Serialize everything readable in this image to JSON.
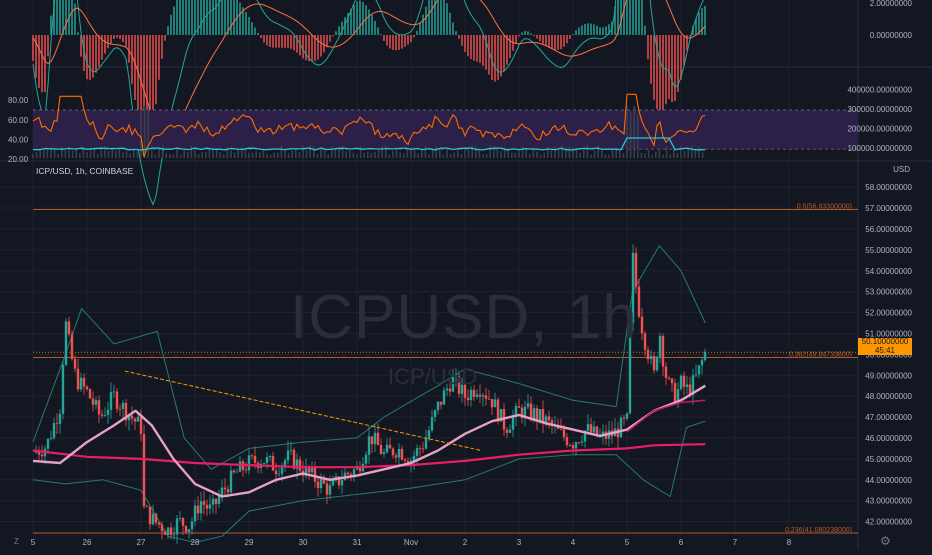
{
  "symbol_label": "ICP/USD, 1h, COINBASE",
  "watermark": {
    "main": "ICPUSD, 1h",
    "sub": "ICP/USD"
  },
  "currency": "USD",
  "last_price": {
    "value": "50.10000000",
    "countdown": "45:41"
  },
  "fib_labels": {
    "f05": "0.5(56.93300000)",
    "f0382": "0.382(49.84733600)",
    "f0236": "0.236(41.080238000)"
  },
  "controls": {
    "timezone_label": "Z"
  },
  "colors": {
    "background": "#131722",
    "up": "#26a69a",
    "down": "#ef5350",
    "trendline": "#ff9800",
    "fib": "#b35a2a",
    "rsi": "#ff6d00",
    "rsi_band": "#2c1f48",
    "ma_fast": "#e8a0c8",
    "ma_slow": "#e91e63",
    "bbands": "#267a72"
  },
  "chart_data": {
    "type": "candlestick",
    "title": "ICP/USD, 1h, COINBASE",
    "x_ticks": [
      "5",
      "26",
      "27",
      "28",
      "29",
      "30",
      "31",
      "Nov",
      "2",
      "3",
      "4",
      "5",
      "6",
      "7",
      "8"
    ],
    "y_ticks": [
      "42.00000000",
      "43.00000000",
      "44.00000000",
      "45.00000000",
      "46.00000000",
      "47.00000000",
      "48.00000000",
      "49.00000000",
      "50.00000000",
      "51.00000000",
      "52.00000000",
      "53.00000000",
      "54.00000000",
      "55.00000000",
      "56.00000000",
      "57.00000000",
      "58.00000000"
    ],
    "ylim": [
      41.5,
      58.3
    ],
    "fib_levels": [
      {
        "ratio": "0.5",
        "price": 56.933
      },
      {
        "ratio": "0.382",
        "price": 49.847336
      },
      {
        "ratio": "0.236",
        "price": 41.080238
      }
    ],
    "last_price": 50.1,
    "trendline": {
      "from": {
        "day": 26.7,
        "price": 49.2
      },
      "to": {
        "day": 33.3,
        "price": 45.4
      }
    },
    "price_path": [
      [
        25.0,
        45.3
      ],
      [
        25.25,
        45.6
      ],
      [
        25.5,
        47.5
      ],
      [
        25.6,
        51.6
      ],
      [
        25.7,
        50.0
      ],
      [
        25.8,
        48.8
      ],
      [
        26.0,
        48.2
      ],
      [
        26.25,
        47.0
      ],
      [
        26.5,
        48.0
      ],
      [
        26.75,
        47.2
      ],
      [
        27.0,
        46.5
      ],
      [
        27.05,
        42.6
      ],
      [
        27.25,
        42.0
      ],
      [
        27.5,
        41.6
      ],
      [
        27.7,
        42.0
      ],
      [
        27.9,
        41.8
      ],
      [
        28.1,
        43.0
      ],
      [
        28.3,
        42.5
      ],
      [
        28.5,
        43.4
      ],
      [
        28.75,
        44.3
      ],
      [
        29.0,
        44.8
      ],
      [
        29.25,
        45.0
      ],
      [
        29.5,
        44.6
      ],
      [
        29.75,
        45.1
      ],
      [
        30.0,
        44.5
      ],
      [
        30.25,
        44.0
      ],
      [
        30.5,
        43.5
      ],
      [
        30.75,
        44.2
      ],
      [
        31.0,
        44.5
      ],
      [
        31.25,
        46.1
      ],
      [
        31.5,
        45.2
      ],
      [
        31.75,
        45.5
      ],
      [
        32.0,
        45.0
      ],
      [
        32.25,
        45.8
      ],
      [
        32.5,
        47.5
      ],
      [
        32.75,
        48.8
      ],
      [
        33.0,
        48.0
      ],
      [
        33.25,
        48.5
      ],
      [
        33.5,
        47.8
      ],
      [
        33.75,
        46.5
      ],
      [
        34.0,
        47.3
      ],
      [
        34.25,
        47.2
      ],
      [
        34.5,
        46.8
      ],
      [
        34.75,
        46.2
      ],
      [
        35.0,
        45.8
      ],
      [
        35.25,
        46.4
      ],
      [
        35.5,
        46.0
      ],
      [
        35.75,
        46.2
      ],
      [
        36.0,
        46.8
      ],
      [
        36.1,
        54.8
      ],
      [
        36.2,
        52.5
      ],
      [
        36.3,
        51.0
      ],
      [
        36.4,
        50.0
      ],
      [
        36.5,
        49.0
      ],
      [
        36.6,
        51.2
      ],
      [
        36.7,
        49.2
      ],
      [
        36.8,
        48.3
      ],
      [
        36.9,
        48.0
      ],
      [
        37.0,
        48.6
      ],
      [
        37.1,
        48.3
      ],
      [
        37.2,
        48.5
      ],
      [
        37.3,
        49.0
      ],
      [
        37.45,
        50.1
      ]
    ],
    "ma_fast": [
      [
        25.0,
        44.9
      ],
      [
        25.5,
        44.8
      ],
      [
        26.0,
        45.8
      ],
      [
        26.5,
        46.6
      ],
      [
        26.9,
        47.3
      ],
      [
        27.2,
        46.6
      ],
      [
        27.6,
        45.0
      ],
      [
        28.0,
        43.8
      ],
      [
        28.5,
        43.2
      ],
      [
        29.0,
        43.4
      ],
      [
        29.5,
        44.0
      ],
      [
        30.0,
        44.3
      ],
      [
        30.5,
        44.0
      ],
      [
        31.0,
        44.2
      ],
      [
        31.5,
        44.5
      ],
      [
        32.0,
        44.8
      ],
      [
        32.5,
        45.4
      ],
      [
        33.0,
        46.2
      ],
      [
        33.5,
        46.8
      ],
      [
        34.0,
        47.1
      ],
      [
        34.5,
        46.7
      ],
      [
        35.0,
        46.4
      ],
      [
        35.5,
        46.1
      ],
      [
        36.0,
        46.4
      ],
      [
        36.5,
        47.3
      ],
      [
        37.0,
        47.8
      ],
      [
        37.45,
        48.5
      ]
    ],
    "ma_slow": [
      [
        25.0,
        45.4
      ],
      [
        26.0,
        45.1
      ],
      [
        27.0,
        45.0
      ],
      [
        28.0,
        44.8
      ],
      [
        29.0,
        44.7
      ],
      [
        30.0,
        44.6
      ],
      [
        31.0,
        44.6
      ],
      [
        32.0,
        44.7
      ],
      [
        33.0,
        44.9
      ],
      [
        34.0,
        45.2
      ],
      [
        35.0,
        45.4
      ],
      [
        36.0,
        45.5
      ],
      [
        36.5,
        45.65
      ],
      [
        37.45,
        45.7
      ]
    ],
    "ma_mid": [
      [
        36.0,
        46.3
      ],
      [
        36.5,
        47.3
      ],
      [
        37.0,
        47.7
      ],
      [
        37.45,
        47.8
      ]
    ],
    "bb_upper": [
      [
        25.0,
        45.8
      ],
      [
        25.6,
        50.0
      ],
      [
        25.9,
        52.2
      ],
      [
        26.5,
        50.5
      ],
      [
        27.3,
        51.1
      ],
      [
        27.8,
        46.0
      ],
      [
        28.3,
        44.5
      ],
      [
        29.0,
        45.5
      ],
      [
        30.0,
        45.8
      ],
      [
        31.0,
        46.0
      ],
      [
        31.5,
        47.0
      ],
      [
        32.5,
        48.5
      ],
      [
        33.0,
        49.3
      ],
      [
        34.0,
        48.6
      ],
      [
        35.0,
        47.8
      ],
      [
        35.8,
        47.5
      ],
      [
        36.1,
        53.0
      ],
      [
        36.6,
        55.2
      ],
      [
        37.0,
        54.0
      ],
      [
        37.45,
        51.5
      ]
    ],
    "bb_lower": [
      [
        25.0,
        44.0
      ],
      [
        25.6,
        43.8
      ],
      [
        26.3,
        44.0
      ],
      [
        27.0,
        43.5
      ],
      [
        27.5,
        41.3
      ],
      [
        28.0,
        41.0
      ],
      [
        28.5,
        41.3
      ],
      [
        29.0,
        42.5
      ],
      [
        30.0,
        43.0
      ],
      [
        31.0,
        43.3
      ],
      [
        32.0,
        43.6
      ],
      [
        33.0,
        44.0
      ],
      [
        34.0,
        45.0
      ],
      [
        35.0,
        45.2
      ],
      [
        35.8,
        45.2
      ],
      [
        36.3,
        44.0
      ],
      [
        36.8,
        43.2
      ],
      [
        37.1,
        46.5
      ],
      [
        37.45,
        46.8
      ]
    ],
    "rsi": {
      "ylim": [
        20,
        90
      ],
      "y_ticks": [
        "20.00",
        "40.00",
        "60.00",
        "80.00"
      ],
      "band": [
        30,
        70
      ],
      "secondary_ticks": [
        "100000.00000000",
        "200000.00000000",
        "300000.00000000",
        "400000.00000000"
      ]
    },
    "macd": {
      "y_ticks": [
        "0.00000000",
        "2.00000000"
      ]
    }
  }
}
